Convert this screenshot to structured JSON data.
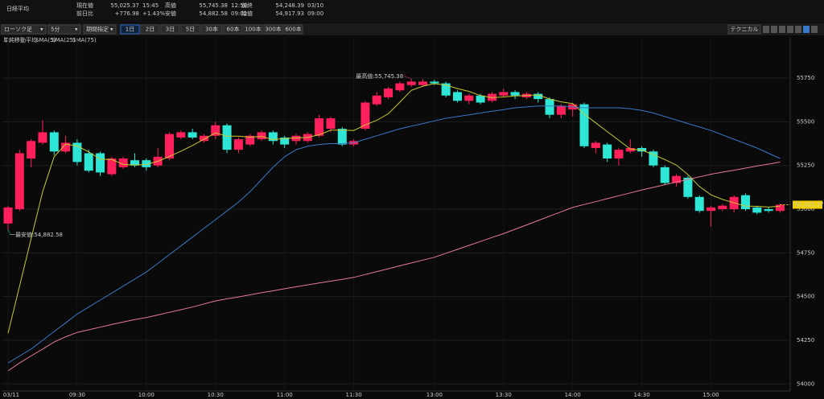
{
  "header": {
    "title": "日経平均",
    "items": [
      {
        "label": "現在値",
        "value": "55,025.37",
        "extra": "15:45"
      },
      {
        "label": "前日比",
        "value": "+776.98",
        "extra": "+1.43%"
      },
      {
        "label": "高値",
        "value": "55,745.38",
        "extra": "12:58"
      },
      {
        "label": "安値",
        "value": "54,882.58",
        "extra": "09:02"
      },
      {
        "label": "前終",
        "value": "54,248.39",
        "extra": "03/10"
      },
      {
        "label": "始値",
        "value": "54,917.93",
        "extra": "09:00"
      }
    ]
  },
  "toolbar": {
    "chart_type": "ローソク足",
    "interval": "5分",
    "period": "期間指定",
    "ranges": [
      "1日",
      "2日",
      "3日",
      "5日",
      "30本",
      "60本",
      "100本",
      "300本",
      "600本"
    ],
    "technical": "テクニカル"
  },
  "chart_data": {
    "type": "candlestick",
    "legend_title": "単純移動平均",
    "categories": [
      "03/11",
      null,
      null,
      null,
      null,
      null,
      "09:30",
      null,
      null,
      null,
      null,
      null,
      "10:00",
      null,
      null,
      null,
      null,
      null,
      "10:30",
      null,
      null,
      null,
      null,
      null,
      "11:00",
      null,
      null,
      null,
      null,
      null,
      "11:30",
      null,
      null,
      null,
      null,
      null,
      null,
      "13:00",
      null,
      null,
      null,
      null,
      null,
      "13:30",
      null,
      null,
      null,
      null,
      null,
      "14:00",
      null,
      null,
      null,
      null,
      null,
      "14:30",
      null,
      null,
      null,
      null,
      null,
      "15:00",
      null,
      null,
      null,
      null,
      null,
      null
    ],
    "open": [
      54918,
      55000,
      55290,
      55380,
      55440,
      55330,
      55380,
      55320,
      55320,
      55200,
      55240,
      55280,
      55280,
      55250,
      55290,
      55410,
      55440,
      55390,
      55420,
      55480,
      55340,
      55370,
      55400,
      55440,
      55410,
      55390,
      55390,
      55420,
      55460,
      55460,
      55370,
      55460,
      55600,
      55640,
      55680,
      55710,
      55710,
      55730,
      55720,
      55670,
      55620,
      55650,
      55620,
      55650,
      55670,
      55640,
      55660,
      55630,
      55540,
      55570,
      55600,
      55350,
      55370,
      55290,
      55330,
      55350,
      55330,
      55240,
      55150,
      55180,
      55070,
      54990,
      55000,
      55000,
      55080,
      55010,
      55000,
      54990
    ],
    "high": [
      55020,
      55340,
      55400,
      55510,
      55450,
      55420,
      55400,
      55340,
      55330,
      55300,
      55300,
      55320,
      55290,
      55350,
      55440,
      55450,
      55460,
      55430,
      55500,
      55490,
      55410,
      55430,
      55450,
      55450,
      55420,
      55430,
      55440,
      55540,
      55530,
      55470,
      55400,
      55620,
      55670,
      55700,
      55730,
      55745.38,
      55745,
      55740,
      55730,
      55680,
      55660,
      55660,
      55670,
      55690,
      55680,
      55670,
      55670,
      55640,
      55600,
      55610,
      55610,
      55390,
      55380,
      55350,
      55400,
      55360,
      55340,
      55250,
      55200,
      55190,
      55080,
      55020,
      55030,
      55080,
      55090,
      55020,
      55010,
      55030
    ],
    "low": [
      54882.58,
      54990,
      55240,
      55370,
      55310,
      55320,
      55250,
      55210,
      55190,
      55190,
      55230,
      55240,
      55220,
      55240,
      55280,
      55400,
      55400,
      55380,
      55400,
      55320,
      55320,
      55360,
      55390,
      55370,
      55350,
      55370,
      55380,
      55410,
      55440,
      55360,
      55360,
      55450,
      55590,
      55630,
      55670,
      55700,
      55700,
      55710,
      55640,
      55610,
      55600,
      55600,
      55610,
      55640,
      55630,
      55630,
      55610,
      55520,
      55520,
      55530,
      55350,
      55320,
      55270,
      55250,
      55320,
      55300,
      55240,
      55140,
      55130,
      55060,
      54980,
      54900,
      54990,
      54980,
      54990,
      54970,
      54980,
      54980
    ],
    "close": [
      55010,
      55320,
      55390,
      55440,
      55330,
      55380,
      55270,
      55220,
      55210,
      55290,
      55290,
      55250,
      55240,
      55300,
      55430,
      55440,
      55410,
      55420,
      55480,
      55340,
      55400,
      55420,
      55440,
      55390,
      55370,
      55420,
      55430,
      55520,
      55520,
      55370,
      55390,
      55610,
      55650,
      55690,
      55720,
      55730,
      55730,
      55720,
      55650,
      55620,
      55650,
      55610,
      55660,
      55670,
      55650,
      55660,
      55630,
      55540,
      55590,
      55600,
      55360,
      55380,
      55290,
      55340,
      55350,
      55330,
      55250,
      55150,
      55190,
      55070,
      54990,
      55010,
      55020,
      55070,
      55000,
      54980,
      54990,
      55025.37
    ],
    "up_color": "#ff1f5a",
    "down_color": "#2ee6d6",
    "series": [
      {
        "name": "SMA(5)",
        "color": "#c8c832",
        "values": [
          54290,
          54560,
          54830,
          55100,
          55300,
          55372,
          55362,
          55328,
          55286,
          55284,
          55256,
          55252,
          55256,
          55274,
          55302,
          55332,
          55364,
          55400,
          55436,
          55418,
          55418,
          55412,
          55416,
          55398,
          55404,
          55408,
          55410,
          55426,
          55452,
          55452,
          55450,
          55482,
          55508,
          55546,
          55612,
          55680,
          55704,
          55718,
          55710,
          55690,
          55674,
          55650,
          55638,
          55642,
          55648,
          55650,
          55654,
          55630,
          55614,
          55604,
          55544,
          55494,
          55444,
          55394,
          55344,
          55338,
          55312,
          55284,
          55252,
          55198,
          55130,
          55082,
          55056,
          55036,
          55018,
          55016,
          55012,
          55017
        ]
      },
      {
        "name": "SMA(25)",
        "color": "#3a78c8",
        "values": [
          54120,
          54160,
          54200,
          54250,
          54300,
          54350,
          54400,
          54440,
          54480,
          54520,
          54560,
          54600,
          54640,
          54690,
          54740,
          54790,
          54840,
          54890,
          54940,
          54990,
          55040,
          55100,
          55170,
          55240,
          55300,
          55340,
          55360,
          55370,
          55375,
          55375,
          55380,
          55400,
          55420,
          55440,
          55460,
          55475,
          55490,
          55505,
          55520,
          55530,
          55540,
          55550,
          55560,
          55570,
          55580,
          55585,
          55590,
          55590,
          55590,
          55585,
          55580,
          55580,
          55580,
          55580,
          55575,
          55565,
          55550,
          55530,
          55510,
          55490,
          55470,
          55450,
          55425,
          55400,
          55375,
          55350,
          55320,
          55290
        ]
      },
      {
        "name": "SMA(75)",
        "color": "#e87a90",
        "values": [
          54075,
          54120,
          54160,
          54200,
          54240,
          54270,
          54295,
          54310,
          54325,
          54340,
          54355,
          54368,
          54380,
          54395,
          54410,
          54425,
          54440,
          54458,
          54475,
          54487,
          54498,
          54510,
          54522,
          54533,
          54545,
          54556,
          54567,
          54578,
          54588,
          54599,
          54610,
          54626,
          54643,
          54659,
          54676,
          54692,
          54709,
          54725,
          54748,
          54770,
          54793,
          54815,
          54838,
          54860,
          54885,
          54910,
          54935,
          54960,
          54985,
          55010,
          55027,
          55043,
          55060,
          55077,
          55093,
          55110,
          55125,
          55140,
          55155,
          55170,
          55185,
          55200,
          55212,
          55223,
          55235,
          55247,
          55258,
          55270
        ]
      }
    ],
    "annotations": {
      "high": "最高値:55,745.38",
      "low": "一最安値:54,882.58"
    },
    "ylim": [
      53960,
      55985
    ],
    "yticks": [
      54000,
      54250,
      54500,
      54750,
      55000,
      55250,
      55500,
      55750
    ],
    "grid": true
  }
}
